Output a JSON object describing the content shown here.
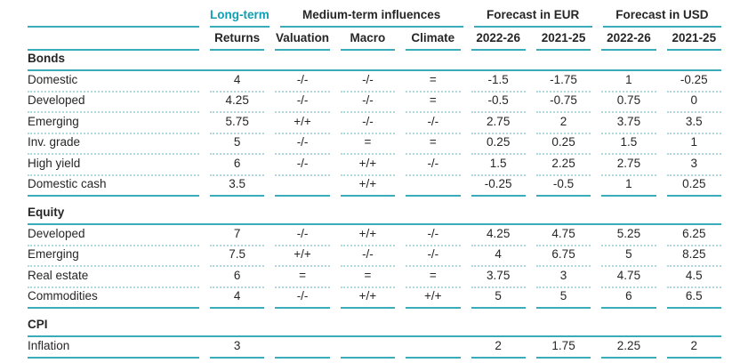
{
  "table": {
    "header": {
      "long_term": "Long-term",
      "medium_term": "Medium-term influences",
      "forecast_eur": "Forecast in EUR",
      "forecast_usd": "Forecast in USD",
      "columns": [
        "Returns",
        "Valuation",
        "Macro",
        "Climate",
        "2022-26",
        "2021-25",
        "2022-26",
        "2021-25"
      ]
    },
    "sections": [
      {
        "title": "Bonds",
        "rows": [
          {
            "label": "Domestic",
            "values": [
              "4",
              "-/-",
              "-/-",
              "=",
              "-1.5",
              "-1.75",
              "1",
              "-0.25"
            ]
          },
          {
            "label": "Developed",
            "values": [
              "4.25",
              "-/-",
              "-/-",
              "=",
              "-0.5",
              "-0.75",
              "0.75",
              "0"
            ]
          },
          {
            "label": "Emerging",
            "values": [
              "5.75",
              "+/+",
              "-/-",
              "-/-",
              "2.75",
              "2",
              "3.75",
              "3.5"
            ]
          },
          {
            "label": "Inv. grade",
            "values": [
              "5",
              "-/-",
              "=",
              "=",
              "0.25",
              "0.25",
              "1.5",
              "1"
            ]
          },
          {
            "label": "High yield",
            "values": [
              "6",
              "-/-",
              "+/+",
              "-/-",
              "1.5",
              "2.25",
              "2.75",
              "3"
            ]
          },
          {
            "label": "Domestic cash",
            "values": [
              "3.5",
              "",
              "+/+",
              "",
              "-0.25",
              "-0.5",
              "1",
              "0.25"
            ]
          }
        ]
      },
      {
        "title": "Equity",
        "rows": [
          {
            "label": "Developed",
            "values": [
              "7",
              "-/-",
              "+/+",
              "-/-",
              "4.25",
              "4.75",
              "5.25",
              "6.25"
            ]
          },
          {
            "label": "Emerging",
            "values": [
              "7.5",
              "+/+",
              "-/-",
              "-/-",
              "4",
              "6.75",
              "5",
              "8.25"
            ]
          },
          {
            "label": "Real estate",
            "values": [
              "6",
              "=",
              "=",
              "=",
              "3.75",
              "3",
              "4.75",
              "4.5"
            ]
          },
          {
            "label": "Commodities",
            "values": [
              "4",
              "-/-",
              "+/+",
              "+/+",
              "5",
              "5",
              "6",
              "6.5"
            ]
          }
        ]
      },
      {
        "title": "CPI",
        "rows": [
          {
            "label": "Inflation",
            "values": [
              "3",
              "",
              "",
              "",
              "2",
              "1.75",
              "2.25",
              "2"
            ]
          }
        ]
      }
    ]
  },
  "colors": {
    "teal_text": "#0f9fb4",
    "line_solid": "#3aabb9",
    "line_dotted": "#b0d9de",
    "text": "#262626"
  }
}
